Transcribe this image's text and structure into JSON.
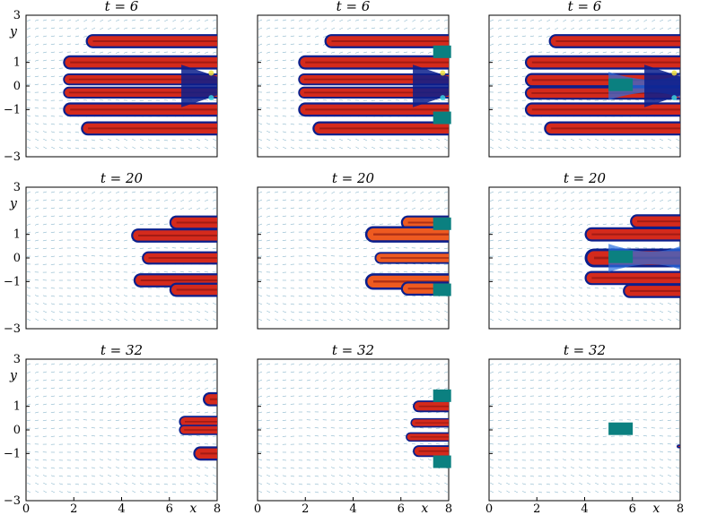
{
  "figure": {
    "rows": [
      {
        "title": "t = 6"
      },
      {
        "title": "t = 20"
      },
      {
        "title": "t = 32"
      }
    ],
    "columns": [
      {
        "obstacle": "none"
      },
      {
        "obstacle": "two-blocks"
      },
      {
        "obstacle": "center-block"
      }
    ],
    "y_ticks": [
      "3",
      "1",
      "0",
      "−1",
      "−3"
    ],
    "y_label": "y",
    "x_ticks": [
      "0",
      "2",
      "4",
      "6",
      "8"
    ],
    "x_label": "x",
    "colors": {
      "fluid_core": "#d42a1c",
      "fluid_dark": "#7a0f0f",
      "fluid_orange": "#ee5a20",
      "interface": "#0b1f8c",
      "mixed": "#2b6fe0",
      "yellow": "#f0e040",
      "cyan": "#3ad0e0",
      "obstacle": "#0b8080",
      "arrows": "#4a8fb0"
    }
  },
  "chart_data": {
    "type": "simulation-field-grid",
    "x_range": [
      0,
      8
    ],
    "y_range": [
      -3,
      3
    ],
    "x_ticks": [
      0,
      2,
      4,
      6,
      8
    ],
    "y_ticks": [
      3,
      1,
      0,
      -1,
      -3
    ],
    "panels": [
      {
        "t": 6,
        "obstacle": "none"
      },
      {
        "t": 6,
        "obstacle": "two-blocks"
      },
      {
        "t": 6,
        "obstacle": "center-block"
      },
      {
        "t": 20,
        "obstacle": "none"
      },
      {
        "t": 20,
        "obstacle": "two-blocks"
      },
      {
        "t": 20,
        "obstacle": "center-block"
      },
      {
        "t": 32,
        "obstacle": "none"
      },
      {
        "t": 32,
        "obstacle": "two-blocks"
      },
      {
        "t": 32,
        "obstacle": "center-block"
      }
    ]
  }
}
